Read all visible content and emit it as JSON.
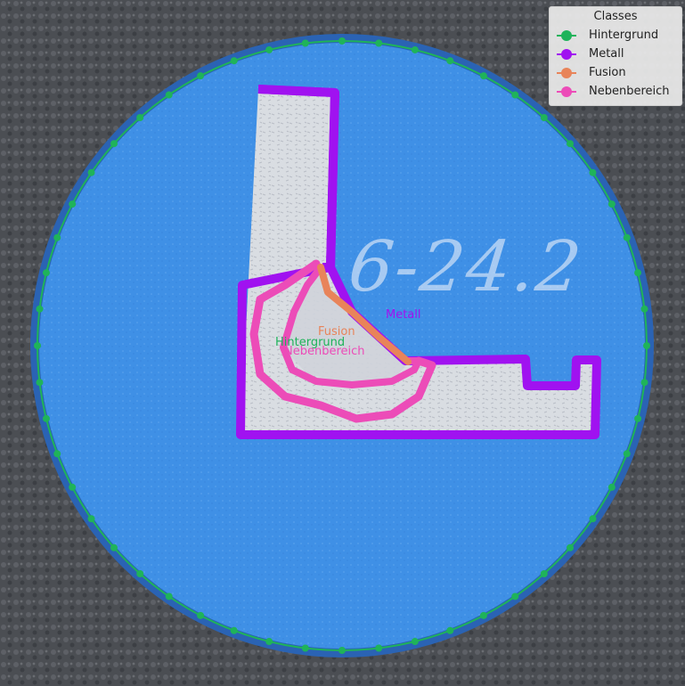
{
  "legend": {
    "title": "Classes",
    "items": [
      {
        "label": "Hintergrund",
        "color": "#1fb35a"
      },
      {
        "label": "Metall",
        "color": "#a012f0"
      },
      {
        "label": "Fusion",
        "color": "#e8845a"
      },
      {
        "label": "Nebenbereich",
        "color": "#ec4cb8"
      }
    ]
  },
  "labels": {
    "metall": "Metall",
    "fusion": "Fusion",
    "hintergrund": "Hintergrund",
    "nebenbereich": "Nebenbereich"
  },
  "sample_marking": "6-24.2",
  "colors": {
    "disc": "#3c8ee6",
    "disc_rim": "#2f6fc2",
    "metal_fill": "#d8dde3",
    "backdrop": "#4a4d52"
  }
}
